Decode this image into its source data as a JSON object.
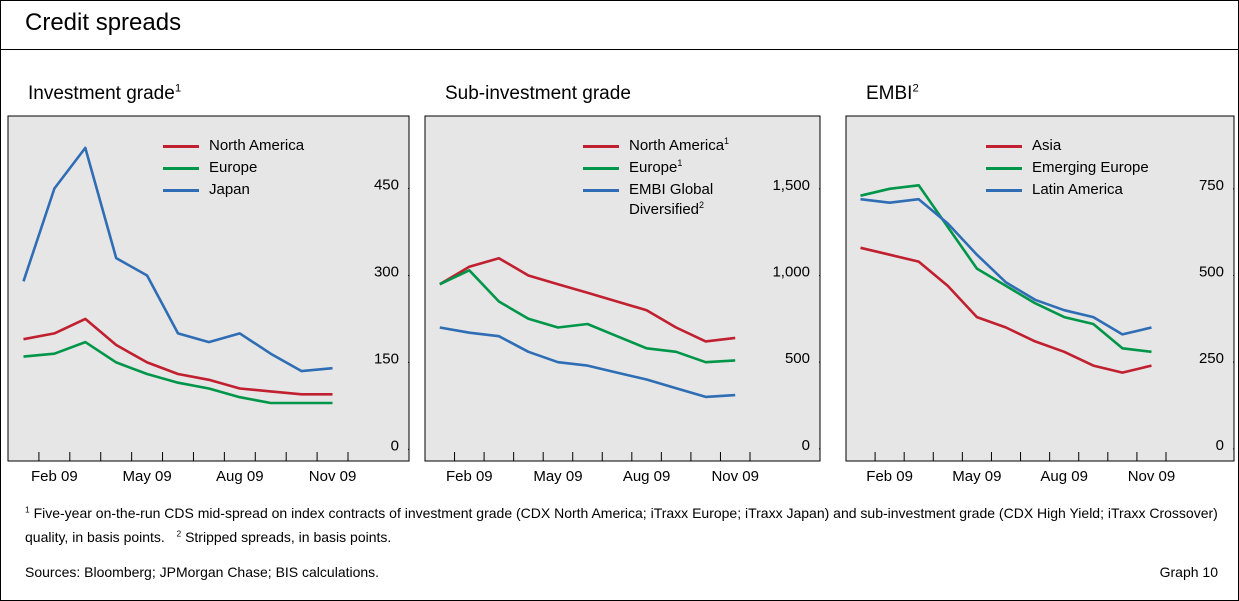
{
  "title": "Credit spreads",
  "chart_data": [
    {
      "type": "line",
      "title": "Investment grade",
      "title_note": "1",
      "x": [
        "2009-01",
        "2009-02",
        "2009-03",
        "2009-04",
        "2009-05",
        "2009-06",
        "2009-07",
        "2009-08",
        "2009-09",
        "2009-10",
        "2009-11"
      ],
      "xlim": [
        "2009-01",
        "2009-11"
      ],
      "xticks": [
        {
          "value": "2009-02",
          "label": "Feb 09"
        },
        {
          "value": "2009-05",
          "label": "May 09"
        },
        {
          "value": "2009-08",
          "label": "Aug 09"
        },
        {
          "value": "2009-11",
          "label": "Nov 09"
        }
      ],
      "ylim": [
        -20,
        575
      ],
      "yticks": [
        0,
        150,
        300,
        450
      ],
      "legend": "upper center",
      "series": [
        {
          "name": "North America",
          "color": "#c0202f",
          "values": [
            190,
            200,
            225,
            180,
            150,
            130,
            120,
            105,
            100,
            95,
            95
          ]
        },
        {
          "name": "Europe",
          "color": "#00964a",
          "values": [
            160,
            165,
            185,
            150,
            130,
            115,
            105,
            90,
            80,
            80,
            80
          ]
        },
        {
          "name": "Japan",
          "color": "#2f6db5",
          "values": [
            290,
            450,
            520,
            330,
            300,
            200,
            185,
            200,
            165,
            135,
            140
          ]
        }
      ]
    },
    {
      "type": "line",
      "title": "Sub-investment grade",
      "x": [
        "2009-01",
        "2009-02",
        "2009-03",
        "2009-04",
        "2009-05",
        "2009-06",
        "2009-07",
        "2009-08",
        "2009-09",
        "2009-10",
        "2009-11"
      ],
      "xlim": [
        "2009-01",
        "2009-11"
      ],
      "xticks": [
        {
          "value": "2009-02",
          "label": "Feb 09"
        },
        {
          "value": "2009-05",
          "label": "May 09"
        },
        {
          "value": "2009-08",
          "label": "Aug 09"
        },
        {
          "value": "2009-11",
          "label": "Nov 09"
        }
      ],
      "ylim": [
        -70,
        1920
      ],
      "yticks": [
        0,
        500,
        {
          "value": 1000,
          "label": "1,000"
        },
        {
          "value": 1500,
          "label": "1,500"
        }
      ],
      "legend": "upper center",
      "series": [
        {
          "name": "North America",
          "note": "1",
          "color": "#c0202f",
          "values": [
            950,
            1050,
            1100,
            1000,
            950,
            900,
            850,
            800,
            700,
            620,
            640
          ]
        },
        {
          "name": "Europe",
          "note": "1",
          "color": "#00964a",
          "values": [
            950,
            1030,
            850,
            750,
            700,
            720,
            650,
            580,
            560,
            500,
            510
          ]
        },
        {
          "name": "EMBI Global Diversified",
          "note": "2",
          "color": "#2f6db5",
          "values": [
            700,
            670,
            650,
            560,
            500,
            480,
            440,
            400,
            350,
            300,
            310
          ]
        }
      ]
    },
    {
      "type": "line",
      "title": "EMBI",
      "title_note": "2",
      "x": [
        "2009-01",
        "2009-02",
        "2009-03",
        "2009-04",
        "2009-05",
        "2009-06",
        "2009-07",
        "2009-08",
        "2009-09",
        "2009-10",
        "2009-11"
      ],
      "xlim": [
        "2009-01",
        "2009-11"
      ],
      "xticks": [
        {
          "value": "2009-02",
          "label": "Feb 09"
        },
        {
          "value": "2009-05",
          "label": "May 09"
        },
        {
          "value": "2009-08",
          "label": "Aug 09"
        },
        {
          "value": "2009-11",
          "label": "Nov 09"
        }
      ],
      "ylim": [
        -35,
        960
      ],
      "yticks": [
        0,
        250,
        500,
        750
      ],
      "legend": "upper center",
      "series": [
        {
          "name": "Asia",
          "color": "#c0202f",
          "values": [
            580,
            560,
            540,
            470,
            380,
            350,
            310,
            280,
            240,
            220,
            240
          ]
        },
        {
          "name": "Emerging Europe",
          "color": "#00964a",
          "values": [
            730,
            750,
            760,
            640,
            520,
            470,
            420,
            380,
            360,
            290,
            280
          ]
        },
        {
          "name": "Latin America",
          "color": "#2f6db5",
          "values": [
            720,
            710,
            720,
            650,
            560,
            480,
            430,
            400,
            380,
            330,
            350
          ]
        }
      ]
    }
  ],
  "footnotes": [
    {
      "mark": "1",
      "text": "Five-year on-the-run CDS mid-spread on index contracts of investment grade (CDX North America; iTraxx Europe; iTraxx Japan) and sub-investment grade (CDX High Yield; iTraxx Crossover) quality, in basis points."
    },
    {
      "mark": "2",
      "text": "Stripped spreads, in basis points."
    }
  ],
  "sources": "Sources: Bloomberg; JPMorgan Chase; BIS calculations.",
  "graph_label": "Graph 10"
}
